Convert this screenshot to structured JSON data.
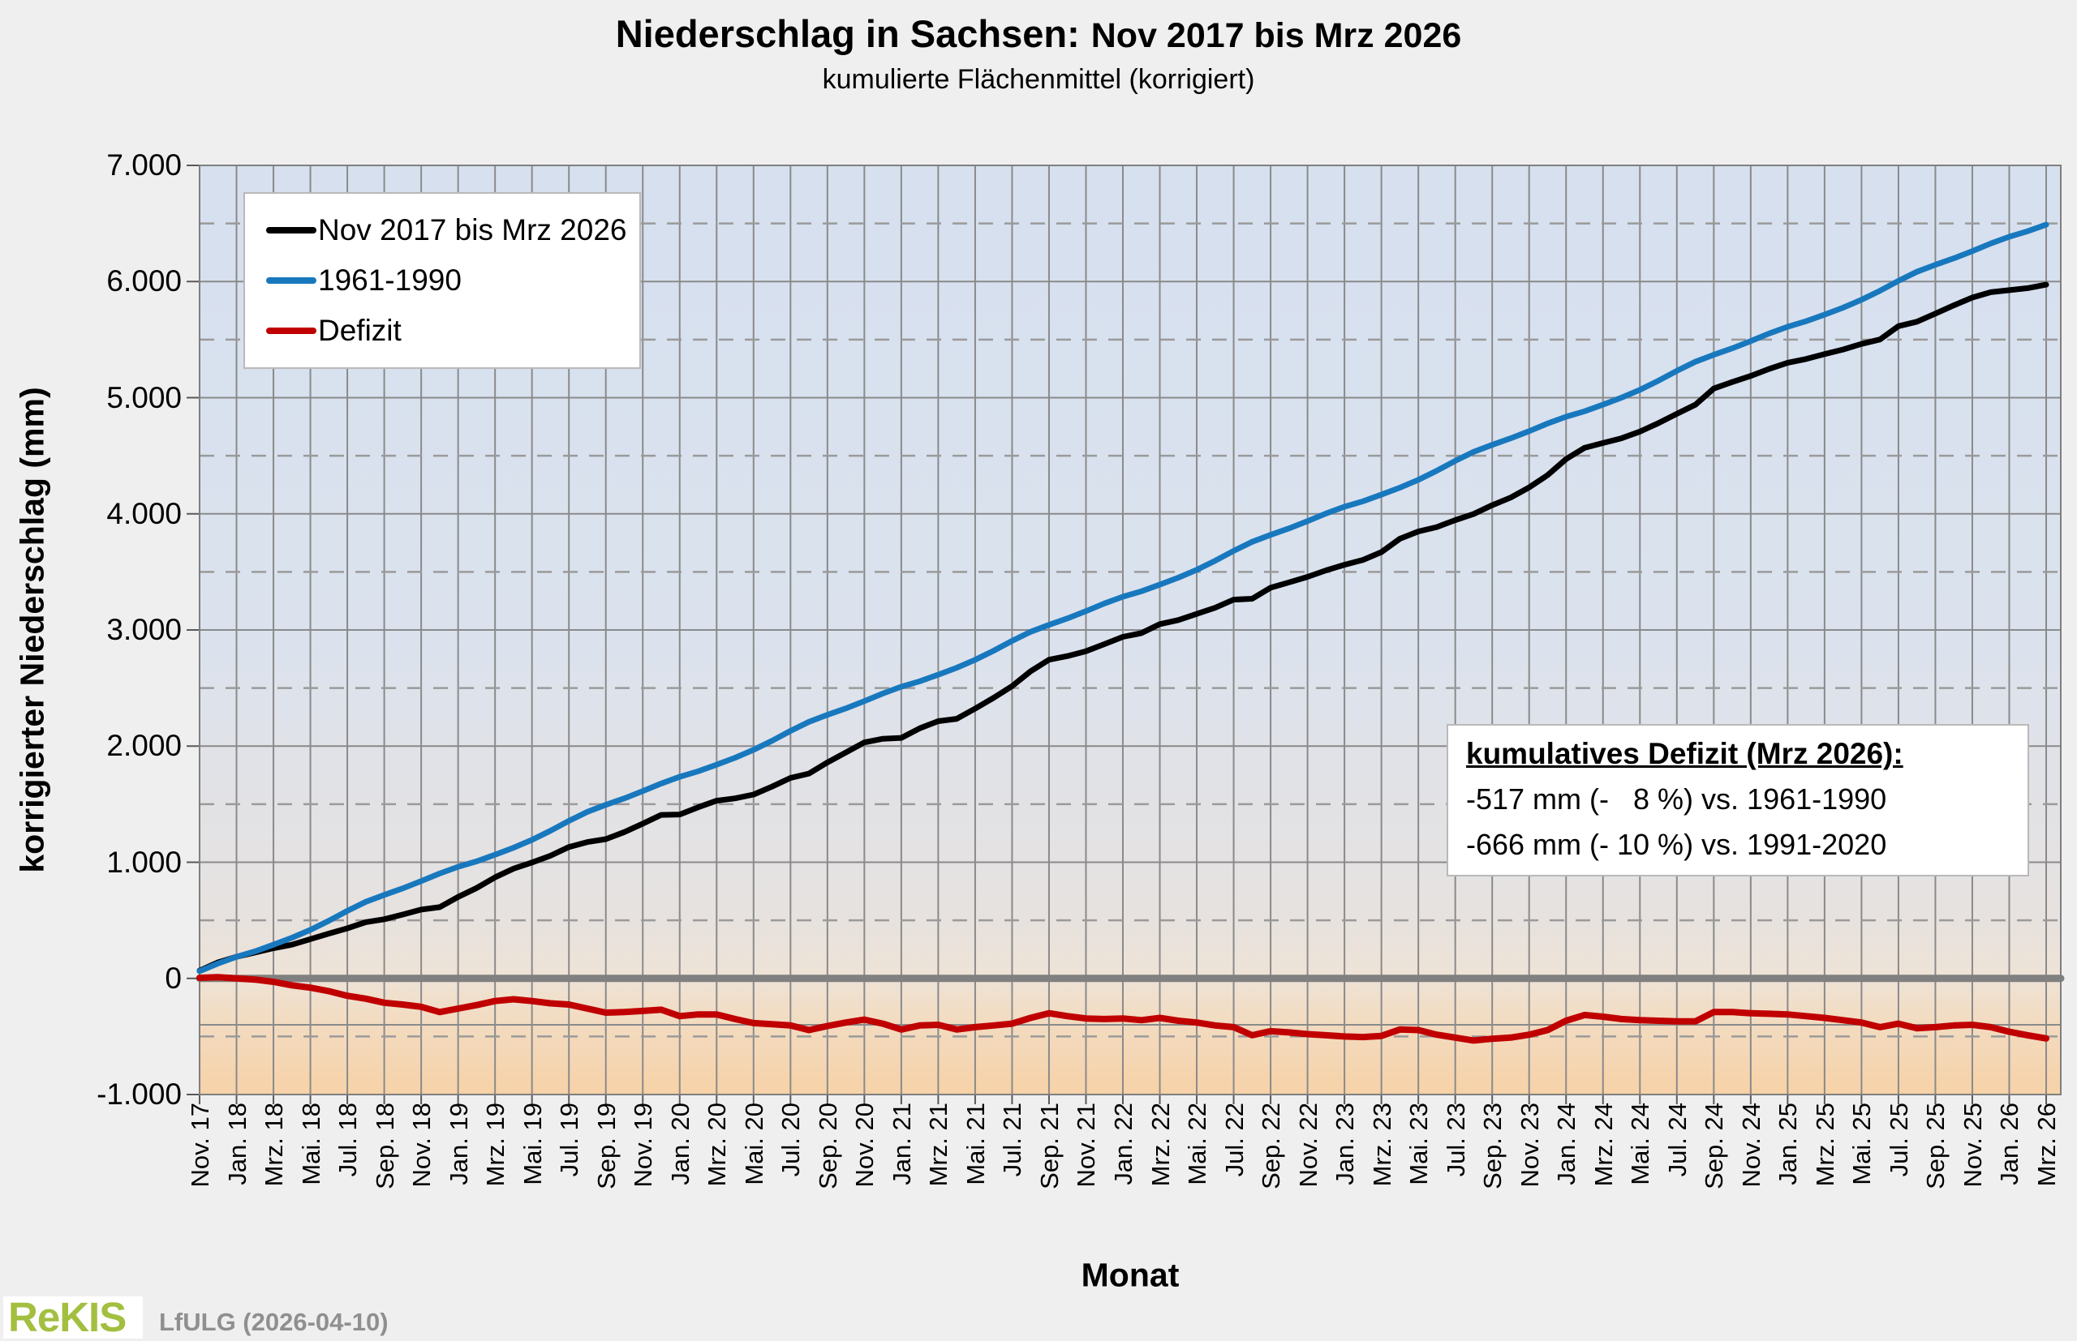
{
  "title": {
    "main": "Niederschlag in Sachsen:",
    "period": "Nov 2017 bis Mrz 2026",
    "subtitle": "kumulierte Flächenmittel (korrigiert)"
  },
  "axes": {
    "y_title": "korrigierter Niederschlag (mm)",
    "x_title": "Monat",
    "y_tick_labels": [
      "7.000",
      "6.000",
      "5.000",
      "4.000",
      "3.000",
      "2.000",
      "1.000",
      "0",
      "-1.000"
    ],
    "y_tick_values": [
      7000,
      6000,
      5000,
      4000,
      3000,
      2000,
      1000,
      0,
      -1000
    ],
    "y_minor_values": [
      6500,
      5500,
      4500,
      3500,
      2500,
      1500,
      500,
      -500
    ],
    "reference_line_value": -400,
    "x_tick_labels": [
      "Nov. 17",
      "Jan. 18",
      "Mrz. 18",
      "Mai. 18",
      "Jul. 18",
      "Sep. 18",
      "Nov. 18",
      "Jan. 19",
      "Mrz. 19",
      "Mai. 19",
      "Jul. 19",
      "Sep. 19",
      "Nov. 19",
      "Jan. 20",
      "Mrz. 20",
      "Mai. 20",
      "Jul. 20",
      "Sep. 20",
      "Nov. 20",
      "Jan. 21",
      "Mrz. 21",
      "Mai. 21",
      "Jul. 21",
      "Sep. 21",
      "Nov. 21",
      "Jan. 22",
      "Mrz. 22",
      "Mai. 22",
      "Jul. 22",
      "Sep. 22",
      "Nov. 22",
      "Jan. 23",
      "Mrz. 23",
      "Mai. 23",
      "Jul. 23",
      "Sep. 23",
      "Nov. 23",
      "Jan. 24",
      "Mrz. 24",
      "Mai. 24",
      "Jul. 24",
      "Sep. 24",
      "Nov. 24",
      "Jan. 25",
      "Mrz. 25",
      "Mai. 25",
      "Jul. 25",
      "Sep. 25",
      "Nov. 25",
      "Jan. 26",
      "Mrz. 26"
    ]
  },
  "legend": {
    "items": [
      {
        "label": "Nov 2017 bis Mrz 2026",
        "color": "#000000"
      },
      {
        "label": "1961-1990",
        "color": "#1878be"
      },
      {
        "label": "Defizit",
        "color": "#c00000"
      }
    ]
  },
  "annotation": {
    "title": "kumulatives Defizit (Mrz 2026):",
    "line1": "-517 mm (-   8 %) vs. 1961-1990",
    "line2": "-666 mm (- 10 %) vs. 1991-2020"
  },
  "footer": {
    "logo": "ReKIS",
    "credit": "LfULG (2026-04-10)"
  },
  "colors": {
    "black_series": "#000000",
    "blue_series": "#1878be",
    "red_series": "#c00000",
    "zero_line": "#808080",
    "grid": "#8a8a8a",
    "minor_grid": "#9a9a9a",
    "page_bg": "#efefef",
    "logo_green": "#a2bf3f",
    "credit_gray": "#8f8f8f"
  },
  "chart_data": {
    "type": "line",
    "title": "Niederschlag in Sachsen: Nov 2017 bis Mrz 2026",
    "xlabel": "Monat",
    "ylabel": "korrigierter Niederschlag (mm)",
    "ylim": [
      -1000,
      7000
    ],
    "x_unit": "Monate ab Nov 2017, Schrittweite 1 Monat (m = 0 ... 100)",
    "grid": "vertical every 2 months; horizontal solid every 1.000, dashed every 500",
    "legend_position": "top-left inside plot",
    "series": [
      {
        "name": "Nov 2017 bis Mrz 2026",
        "color": "#000000",
        "values": [
          67,
          138,
          186,
          223,
          260,
          290,
          338,
          386,
          431,
          484,
          509,
          550,
          592,
          613,
          701,
          778,
          870,
          945,
          998,
          1056,
          1131,
          1174,
          1199,
          1260,
          1332,
          1408,
          1411,
          1473,
          1530,
          1550,
          1583,
          1651,
          1726,
          1764,
          1859,
          1945,
          2032,
          2063,
          2071,
          2153,
          2215,
          2235,
          2323,
          2416,
          2516,
          2644,
          2744,
          2775,
          2817,
          2878,
          2941,
          2973,
          3050,
          3085,
          3138,
          3191,
          3261,
          3269,
          3364,
          3410,
          3457,
          3513,
          3561,
          3603,
          3670,
          3785,
          3848,
          3886,
          3946,
          3999,
          4074,
          4140,
          4227,
          4333,
          4471,
          4568,
          4610,
          4650,
          4708,
          4781,
          4861,
          4939,
          5079,
          5135,
          5187,
          5248,
          5301,
          5333,
          5375,
          5415,
          5463,
          5501,
          5616,
          5654,
          5724,
          5795,
          5862,
          5908,
          5926,
          5943,
          5973
        ]
      },
      {
        "name": "1961-1990",
        "color": "#1878be",
        "values": [
          62,
          128,
          186,
          233,
          290,
          350,
          418,
          496,
          581,
          659,
          719,
          775,
          837,
          903,
          961,
          1008,
          1065,
          1125,
          1193,
          1271,
          1356,
          1434,
          1494,
          1550,
          1612,
          1678,
          1736,
          1783,
          1840,
          1900,
          1968,
          2046,
          2131,
          2209,
          2269,
          2325,
          2387,
          2453,
          2511,
          2558,
          2615,
          2675,
          2743,
          2821,
          2906,
          2984,
          3044,
          3100,
          3162,
          3228,
          3286,
          3333,
          3390,
          3450,
          3518,
          3596,
          3681,
          3759,
          3819,
          3875,
          3937,
          4003,
          4061,
          4108,
          4165,
          4225,
          4293,
          4371,
          4456,
          4534,
          4594,
          4650,
          4712,
          4778,
          4836,
          4883,
          4940,
          5000,
          5068,
          5146,
          5231,
          5309,
          5369,
          5425,
          5487,
          5553,
          5611,
          5658,
          5715,
          5775,
          5843,
          5921,
          6006,
          6084,
          6144,
          6200,
          6262,
          6328,
          6386,
          6433,
          6490
        ]
      },
      {
        "name": "Defizit",
        "color": "#c00000",
        "values": [
          5,
          10,
          0,
          -10,
          -30,
          -60,
          -80,
          -110,
          -150,
          -175,
          -210,
          -225,
          -245,
          -290,
          -260,
          -230,
          -195,
          -180,
          -195,
          -215,
          -225,
          -260,
          -295,
          -290,
          -280,
          -270,
          -325,
          -310,
          -310,
          -350,
          -385,
          -395,
          -405,
          -445,
          -410,
          -380,
          -355,
          -390,
          -440,
          -405,
          -400,
          -440,
          -420,
          -405,
          -390,
          -340,
          -300,
          -325,
          -345,
          -350,
          -345,
          -360,
          -340,
          -365,
          -380,
          -405,
          -420,
          -490,
          -455,
          -465,
          -480,
          -490,
          -500,
          -505,
          -495,
          -440,
          -445,
          -485,
          -510,
          -535,
          -520,
          -510,
          -485,
          -445,
          -365,
          -315,
          -330,
          -350,
          -360,
          -365,
          -370,
          -370,
          -290,
          -290,
          -300,
          -305,
          -310,
          -325,
          -340,
          -360,
          -380,
          -420,
          -390,
          -430,
          -420,
          -405,
          -400,
          -420,
          -460,
          -490,
          -517
        ]
      }
    ]
  }
}
